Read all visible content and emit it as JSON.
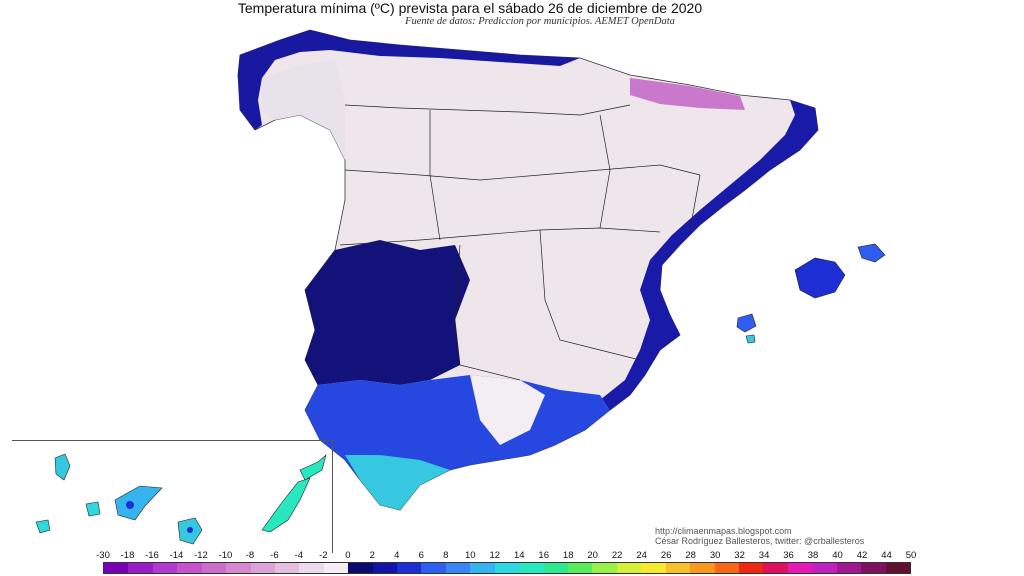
{
  "title": "Temperatura mínima (ºC) prevista para el sábado 26 de diciembre de 2020",
  "subtitle": "Fuente de datos: Prediccion por municipios. AEMET OpenData",
  "credits": {
    "url": "http://climaenmapas.blogspot.com",
    "author": "César Rodríguez Ballesteros, twitter: @crballesteros"
  },
  "legend": {
    "unit": "ºC",
    "labels": [
      "-30",
      "-18",
      "-16",
      "-14",
      "-12",
      "-10",
      "-8",
      "-6",
      "-4",
      "-2",
      "0",
      "2",
      "4",
      "6",
      "8",
      "10",
      "12",
      "14",
      "16",
      "18",
      "20",
      "22",
      "24",
      "26",
      "28",
      "30",
      "32",
      "34",
      "36",
      "38",
      "40",
      "42",
      "44",
      "50"
    ],
    "colors": [
      "#7a00b8",
      "#9a1ec8",
      "#b23ad0",
      "#c653cc",
      "#cc6dcc",
      "#d689d2",
      "#dda3d8",
      "#e4bfe0",
      "#ecd9ea",
      "#f6eef4",
      "#0a0a70",
      "#1313a8",
      "#1c2ed4",
      "#2e5ef0",
      "#3b86f5",
      "#35b4f0",
      "#2ed8e0",
      "#28e8c0",
      "#30e890",
      "#58ec5a",
      "#98f048",
      "#d4f038",
      "#f8e830",
      "#f8c028",
      "#f89820",
      "#f86818",
      "#f02810",
      "#e01060",
      "#e818b8",
      "#c020c0",
      "#a01890",
      "#801060",
      "#601030"
    ]
  },
  "map": {
    "region": "Península Ibérica e Islas Baleares",
    "inset": "Islas Canarias"
  }
}
